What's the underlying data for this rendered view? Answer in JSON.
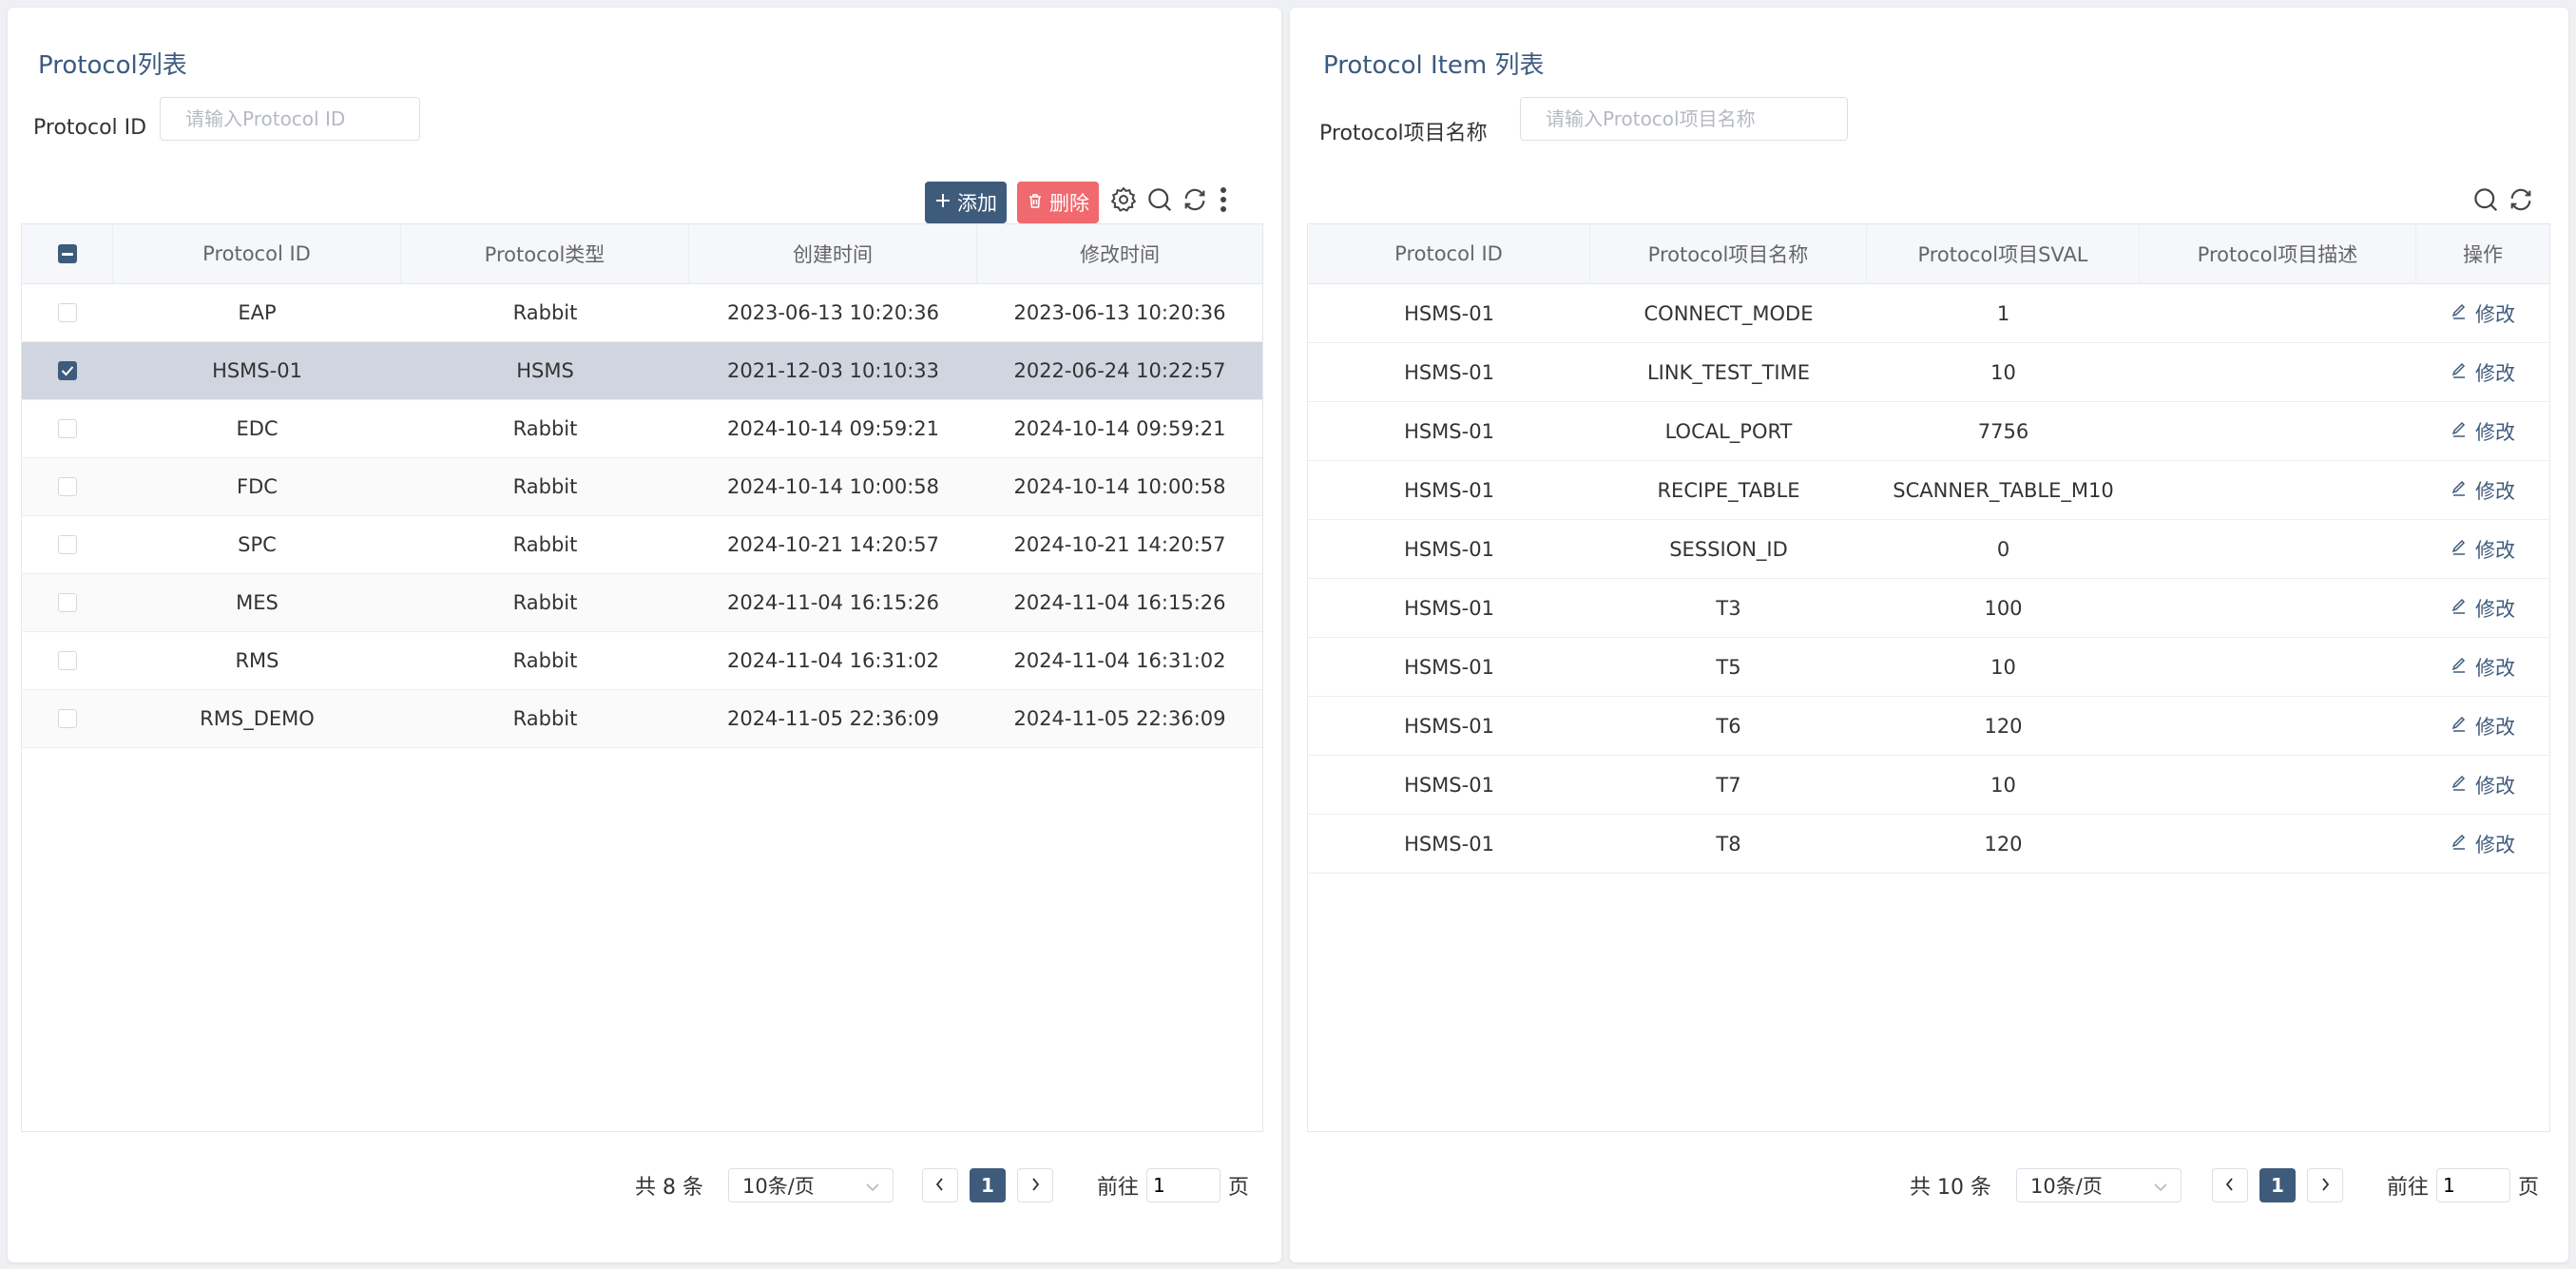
{
  "left": {
    "title": "Protocol列表",
    "filter": {
      "label": "Protocol ID",
      "placeholder": "请输入Protocol ID",
      "value": ""
    },
    "toolbar": {
      "add_label": "添加",
      "delete_label": "删除"
    },
    "columns": [
      "Protocol ID",
      "Protocol类型",
      "创建时间",
      "修改时间"
    ],
    "rows": [
      {
        "id": "EAP",
        "type": "Rabbit",
        "created": "2023-06-13 10:20:36",
        "modified": "2023-06-13 10:20:36",
        "checked": false
      },
      {
        "id": "HSMS-01",
        "type": "HSMS",
        "created": "2021-12-03 10:10:33",
        "modified": "2022-06-24 10:22:57",
        "checked": true
      },
      {
        "id": "EDC",
        "type": "Rabbit",
        "created": "2024-10-14 09:59:21",
        "modified": "2024-10-14 09:59:21",
        "checked": false
      },
      {
        "id": "FDC",
        "type": "Rabbit",
        "created": "2024-10-14 10:00:58",
        "modified": "2024-10-14 10:00:58",
        "checked": false
      },
      {
        "id": "SPC",
        "type": "Rabbit",
        "created": "2024-10-21 14:20:57",
        "modified": "2024-10-21 14:20:57",
        "checked": false
      },
      {
        "id": "MES",
        "type": "Rabbit",
        "created": "2024-11-04 16:15:26",
        "modified": "2024-11-04 16:15:26",
        "checked": false
      },
      {
        "id": "RMS",
        "type": "Rabbit",
        "created": "2024-11-04 16:31:02",
        "modified": "2024-11-04 16:31:02",
        "checked": false
      },
      {
        "id": "RMS_DEMO",
        "type": "Rabbit",
        "created": "2024-11-05 22:36:09",
        "modified": "2024-11-05 22:36:09",
        "checked": false
      }
    ],
    "pagination": {
      "total": "共 8 条",
      "page_size": "10条/页",
      "current_page": "1",
      "goto_label": "前往",
      "goto_value": "1",
      "page_suffix": "页"
    }
  },
  "right": {
    "title": "Protocol Item 列表",
    "filter": {
      "label": "Protocol项目名称",
      "placeholder": "请输入Protocol项目名称",
      "value": ""
    },
    "columns": [
      "Protocol ID",
      "Protocol项目名称",
      "Protocol项目SVAL",
      "Protocol项目描述",
      "操作"
    ],
    "edit_label": "修改",
    "rows": [
      {
        "id": "HSMS-01",
        "name": "CONNECT_MODE",
        "sval": "1",
        "desc": ""
      },
      {
        "id": "HSMS-01",
        "name": "LINK_TEST_TIME",
        "sval": "10",
        "desc": ""
      },
      {
        "id": "HSMS-01",
        "name": "LOCAL_PORT",
        "sval": "7756",
        "desc": ""
      },
      {
        "id": "HSMS-01",
        "name": "RECIPE_TABLE",
        "sval": "SCANNER_TABLE_M10",
        "desc": ""
      },
      {
        "id": "HSMS-01",
        "name": "SESSION_ID",
        "sval": "0",
        "desc": ""
      },
      {
        "id": "HSMS-01",
        "name": "T3",
        "sval": "100",
        "desc": ""
      },
      {
        "id": "HSMS-01",
        "name": "T5",
        "sval": "10",
        "desc": ""
      },
      {
        "id": "HSMS-01",
        "name": "T6",
        "sval": "120",
        "desc": ""
      },
      {
        "id": "HSMS-01",
        "name": "T7",
        "sval": "10",
        "desc": ""
      },
      {
        "id": "HSMS-01",
        "name": "T8",
        "sval": "120",
        "desc": ""
      }
    ],
    "pagination": {
      "total": "共 10 条",
      "page_size": "10条/页",
      "current_page": "1",
      "goto_label": "前往",
      "goto_value": "1",
      "page_suffix": "页"
    }
  },
  "icons": {
    "add": "plus-icon",
    "delete": "trash-icon",
    "settings": "gear-icon",
    "search": "search-icon",
    "refresh": "refresh-icon",
    "more": "more-vertical-icon",
    "edit": "edit-icon",
    "prev": "chevron-left-icon",
    "next": "chevron-right-icon",
    "dropdown": "chevron-down-icon"
  },
  "colors": {
    "primary": "#3f5b7c",
    "danger": "#f0696e",
    "selected_row": "#d0d5e0",
    "title": "#3c5a80"
  }
}
